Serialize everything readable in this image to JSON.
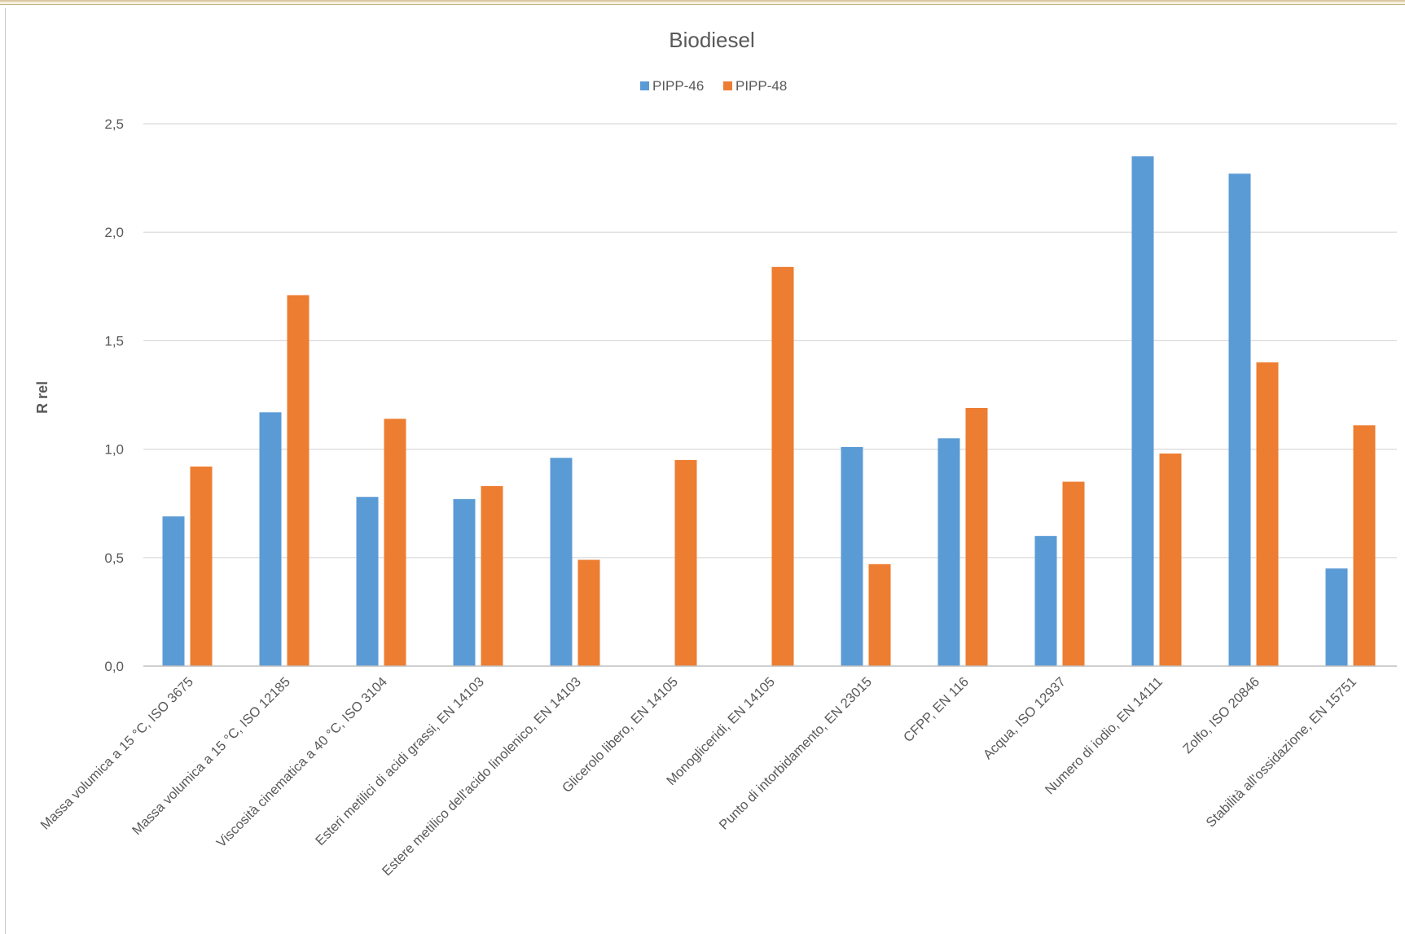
{
  "chart_data": {
    "type": "bar",
    "title": "Biodiesel",
    "xlabel": "",
    "ylabel": "R rel",
    "ylim": [
      0,
      2.5
    ],
    "yticks": [
      "0,0",
      "0,5",
      "1,0",
      "1,5",
      "2,0",
      "2,5"
    ],
    "ytick_values": [
      0,
      0.5,
      1.0,
      1.5,
      2.0,
      2.5
    ],
    "grid": true,
    "legend_position": "top",
    "categories": [
      "Massa volumica a 15 °C, ISO 3675",
      "Massa volumica a 15 °C, ISO 12185",
      "Viscosità cinematica a 40 °C, ISO 3104",
      "Esteri metilici di acidi grassi, EN 14103",
      "Estere metilico dell'acido linolenico, EN 14103",
      "Glicerolo libero, EN 14105",
      "Monogliceridi, EN 14105",
      "Punto di intorbidamento, EN 23015",
      "CFPP, EN 116",
      "Acqua, ISO 12937",
      "Numero di iodio, EN 14111",
      "Zolfo, ISO 20846",
      "Stabilità all'ossidazione, EN 15751"
    ],
    "series": [
      {
        "name": "PIPP-46",
        "color": "#5b9bd5",
        "values": [
          0.69,
          1.17,
          0.78,
          0.77,
          0.96,
          null,
          null,
          1.01,
          1.05,
          0.6,
          2.35,
          2.27,
          0.45
        ]
      },
      {
        "name": "PIPP-48",
        "color": "#ed7d31",
        "values": [
          0.92,
          1.71,
          1.14,
          0.83,
          0.49,
          0.95,
          1.84,
          0.47,
          1.19,
          0.85,
          0.98,
          1.4,
          1.11
        ]
      }
    ]
  }
}
